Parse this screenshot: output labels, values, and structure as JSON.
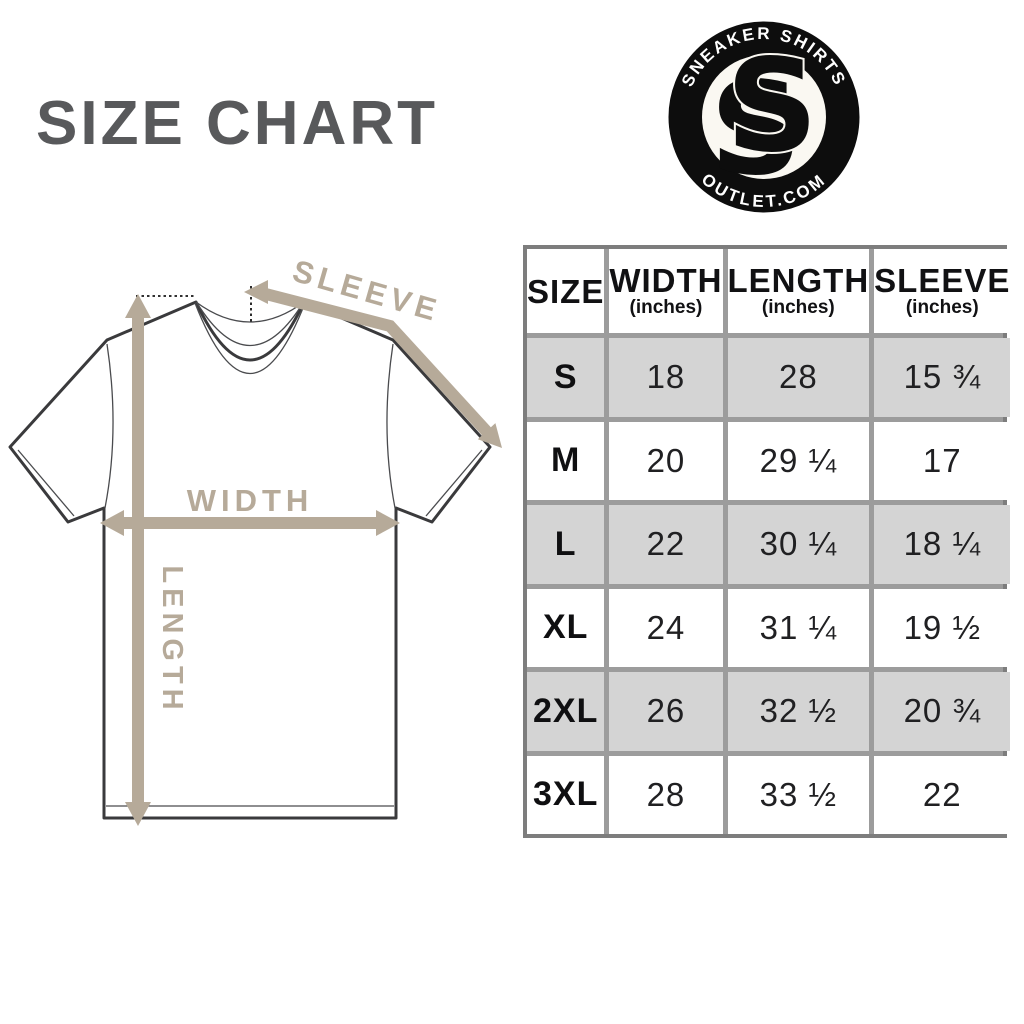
{
  "title": "SIZE CHART",
  "logo": {
    "top_text": "SNEAKER SHIRTS",
    "bottom_text": "OUTLET.COM",
    "monogram_letters": [
      "S",
      "S"
    ],
    "badge_color": "#0d0d0d",
    "inner_color": "#faf8f2"
  },
  "diagram": {
    "labels": {
      "sleeve": "SLEEVE",
      "width": "WIDTH",
      "length": "LENGTH"
    },
    "arrow_color": "#b6aa99",
    "outline_color": "#3a3a3c"
  },
  "table": {
    "columns": [
      {
        "label": "SIZE",
        "sub": ""
      },
      {
        "label": "WIDTH",
        "sub": "(inches)"
      },
      {
        "label": "LENGTH",
        "sub": "(inches)"
      },
      {
        "label": "SLEEVE",
        "sub": "(inches)"
      }
    ],
    "rows": [
      {
        "size": "S",
        "width": "18",
        "length": "28",
        "sleeve": "15 ¾"
      },
      {
        "size": "M",
        "width": "20",
        "length": "29 ¼",
        "sleeve": "17"
      },
      {
        "size": "L",
        "width": "22",
        "length": "30 ¼",
        "sleeve": "18 ¼"
      },
      {
        "size": "XL",
        "width": "24",
        "length": "31 ¼",
        "sleeve": "19 ½"
      },
      {
        "size": "2XL",
        "width": "26",
        "length": "32 ½",
        "sleeve": "20 ¾"
      },
      {
        "size": "3XL",
        "width": "28",
        "length": "33 ½",
        "sleeve": "22"
      }
    ],
    "stripe_color": "#d4d4d4",
    "border_color": "#9c9c9c"
  }
}
